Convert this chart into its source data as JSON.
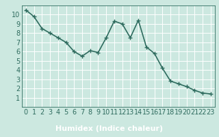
{
  "x": [
    0,
    1,
    2,
    3,
    4,
    5,
    6,
    7,
    8,
    9,
    10,
    11,
    12,
    13,
    14,
    15,
    16,
    17,
    18,
    19,
    20,
    21,
    22,
    23
  ],
  "y": [
    10.5,
    9.8,
    8.5,
    8.0,
    7.5,
    7.0,
    6.0,
    5.5,
    6.1,
    5.9,
    7.5,
    9.3,
    9.0,
    7.5,
    9.4,
    6.5,
    5.8,
    4.2,
    2.8,
    2.5,
    2.2,
    1.8,
    1.5,
    1.4
  ],
  "xlabel": "Humidex (Indice chaleur)",
  "ylim": [
    0,
    11
  ],
  "xlim": [
    -0.5,
    23.5
  ],
  "yticks": [
    1,
    2,
    3,
    4,
    5,
    6,
    7,
    8,
    9,
    10
  ],
  "xticks": [
    0,
    1,
    2,
    3,
    4,
    5,
    6,
    7,
    8,
    9,
    10,
    11,
    12,
    13,
    14,
    15,
    16,
    17,
    18,
    19,
    20,
    21,
    22,
    23
  ],
  "line_color": "#2e6b5e",
  "marker": "+",
  "marker_size": 4,
  "bg_color": "#cce8e0",
  "grid_color": "#ffffff",
  "grid_minor_color": "#e8f5f2",
  "axis_label_color": "#2e6b5e",
  "tick_label_color": "#2e6b5e",
  "xlabel_fontsize": 8,
  "tick_fontsize": 7,
  "linewidth": 1.2,
  "spine_color": "#2e6b5e",
  "bottom_bar_color": "#3d7a6a"
}
